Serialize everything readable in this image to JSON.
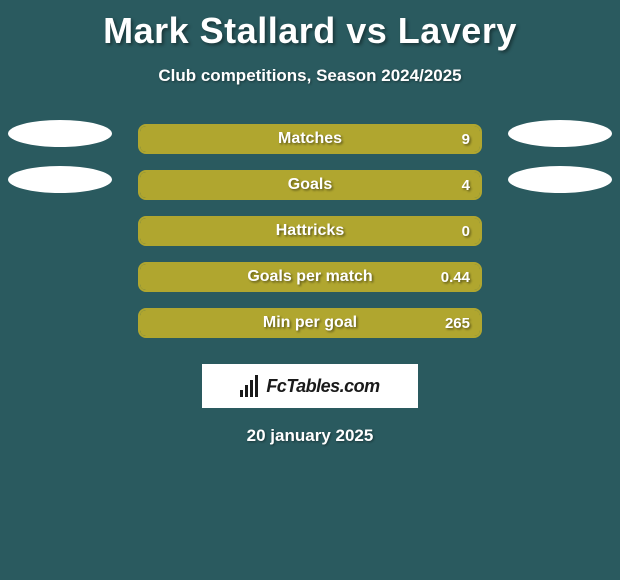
{
  "title": "Mark Stallard vs Lavery",
  "subtitle": "Club competitions, Season 2024/2025",
  "background_color": "#2a5a5f",
  "bar_border_color": "#b0a62f",
  "bar_fill_color": "#b0a62f",
  "ellipse_color": "#ffffff",
  "title_fontsize": 36,
  "rows": [
    {
      "label": "Matches",
      "value": "9",
      "fill_percent": 100,
      "show_ellipses": true
    },
    {
      "label": "Goals",
      "value": "4",
      "fill_percent": 100,
      "show_ellipses": true
    },
    {
      "label": "Hattricks",
      "value": "0",
      "fill_percent": 100,
      "show_ellipses": false
    },
    {
      "label": "Goals per match",
      "value": "0.44",
      "fill_percent": 100,
      "show_ellipses": false
    },
    {
      "label": "Min per goal",
      "value": "265",
      "fill_percent": 100,
      "show_ellipses": false
    }
  ],
  "brand": "FcTables.com",
  "date": "20 january 2025"
}
